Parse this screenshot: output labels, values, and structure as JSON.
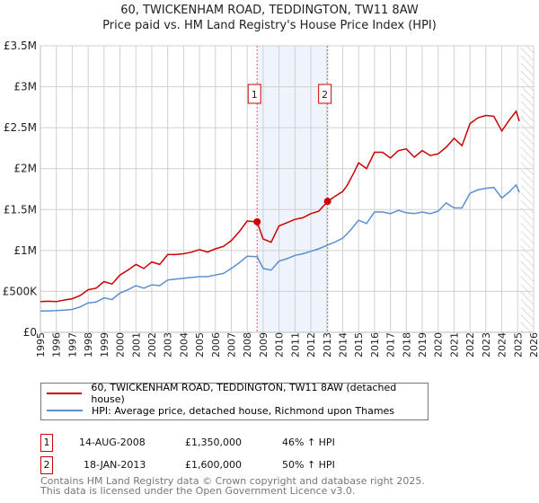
{
  "title": "60, TWICKENHAM ROAD, TEDDINGTON, TW11 8AW",
  "subtitle": "Price paid vs. HM Land Registry's House Price Index (HPI)",
  "chart_data": {
    "type": "line",
    "title": "60, TWICKENHAM ROAD, TEDDINGTON, TW11 8AW",
    "subtitle": "Price paid vs. HM Land Registry's House Price Index (HPI)",
    "xlim": [
      1995,
      2026
    ],
    "ylim": [
      0,
      3500000
    ],
    "x_ticks": [
      "1995",
      "1996",
      "1997",
      "1998",
      "1999",
      "2000",
      "2001",
      "2002",
      "2003",
      "2004",
      "2005",
      "2006",
      "2007",
      "2008",
      "2009",
      "2010",
      "2011",
      "2012",
      "2013",
      "2014",
      "2015",
      "2016",
      "2017",
      "2018",
      "2019",
      "2020",
      "2021",
      "2022",
      "2023",
      "2024",
      "2025",
      "2026"
    ],
    "y_ticks": [
      {
        "v": 0,
        "label": "£0"
      },
      {
        "v": 500000,
        "label": "£500K"
      },
      {
        "v": 1000000,
        "label": "£1M"
      },
      {
        "v": 1500000,
        "label": "£1.5M"
      },
      {
        "v": 2000000,
        "label": "£2M"
      },
      {
        "v": 2500000,
        "label": "£2.5M"
      },
      {
        "v": 3000000,
        "label": "£3M"
      },
      {
        "v": 3500000,
        "label": "£3.5M"
      }
    ],
    "grid": true,
    "shaded_period": [
      2008.62,
      2013.05
    ],
    "forecast_hatch_from": 2025.2,
    "series": [
      {
        "name": "60, TWICKENHAM ROAD, TEDDINGTON, TW11 8AW (detached house)",
        "color": "#cc0000",
        "x": [
          1995,
          1995.5,
          1996,
          1996.5,
          1997,
          1997.5,
          1998,
          1998.5,
          1999,
          1999.5,
          2000,
          2000.5,
          2001,
          2001.5,
          2002,
          2002.5,
          2003,
          2003.5,
          2004,
          2004.5,
          2005,
          2005.5,
          2006,
          2006.5,
          2007,
          2007.5,
          2008,
          2008.62,
          2009,
          2009.5,
          2010,
          2010.5,
          2011,
          2011.5,
          2012,
          2012.5,
          2013.05,
          2013.5,
          2014,
          2014.3,
          2014.7,
          2015,
          2015.5,
          2016,
          2016.5,
          2017,
          2017.5,
          2018,
          2018.5,
          2019,
          2019.5,
          2020,
          2020.5,
          2021,
          2021.5,
          2022,
          2022.5,
          2023,
          2023.5,
          2024,
          2024.5,
          2024.9,
          2025.1
        ],
        "values": [
          375000,
          380000,
          375000,
          395000,
          410000,
          450000,
          520000,
          540000,
          620000,
          590000,
          700000,
          760000,
          830000,
          780000,
          860000,
          830000,
          950000,
          950000,
          960000,
          980000,
          1010000,
          980000,
          1020000,
          1050000,
          1120000,
          1230000,
          1360000,
          1350000,
          1140000,
          1100000,
          1300000,
          1340000,
          1380000,
          1400000,
          1450000,
          1480000,
          1600000,
          1660000,
          1720000,
          1800000,
          1950000,
          2070000,
          2000000,
          2200000,
          2200000,
          2130000,
          2220000,
          2240000,
          2140000,
          2220000,
          2160000,
          2180000,
          2260000,
          2370000,
          2280000,
          2550000,
          2620000,
          2650000,
          2640000,
          2460000,
          2600000,
          2700000,
          2580000
        ]
      },
      {
        "name": "HPI: Average price, detached house, Richmond upon Thames",
        "color": "#5b8fd4",
        "x": [
          1995,
          1995.5,
          1996,
          1996.5,
          1997,
          1997.5,
          1998,
          1998.5,
          1999,
          1999.5,
          2000,
          2000.5,
          2001,
          2001.5,
          2002,
          2002.5,
          2003,
          2003.5,
          2004,
          2004.5,
          2005,
          2005.5,
          2006,
          2006.5,
          2007,
          2007.5,
          2008,
          2008.62,
          2009,
          2009.5,
          2010,
          2010.5,
          2011,
          2011.5,
          2012,
          2012.5,
          2013.05,
          2013.5,
          2014,
          2014.5,
          2015,
          2015.5,
          2016,
          2016.5,
          2017,
          2017.5,
          2018,
          2018.5,
          2019,
          2019.5,
          2020,
          2020.5,
          2021,
          2021.5,
          2022,
          2022.5,
          2023,
          2023.5,
          2024,
          2024.5,
          2024.9,
          2025.1
        ],
        "values": [
          260000,
          262000,
          265000,
          272000,
          280000,
          310000,
          360000,
          370000,
          420000,
          400000,
          480000,
          520000,
          570000,
          540000,
          580000,
          570000,
          640000,
          650000,
          660000,
          670000,
          680000,
          680000,
          700000,
          720000,
          780000,
          850000,
          930000,
          925000,
          780000,
          760000,
          870000,
          900000,
          940000,
          960000,
          990000,
          1020000,
          1066000,
          1100000,
          1150000,
          1250000,
          1370000,
          1330000,
          1470000,
          1470000,
          1450000,
          1490000,
          1460000,
          1450000,
          1470000,
          1450000,
          1480000,
          1580000,
          1520000,
          1520000,
          1700000,
          1740000,
          1760000,
          1770000,
          1640000,
          1720000,
          1800000,
          1710000
        ]
      }
    ],
    "sales": [
      {
        "id": "1",
        "x": 2008.62,
        "value": 1350000
      },
      {
        "id": "2",
        "x": 2013.05,
        "value": 1600000
      }
    ]
  },
  "legend": {
    "property": "60, TWICKENHAM ROAD, TEDDINGTON, TW11 8AW (detached house)",
    "hpi": "HPI: Average price, detached house, Richmond upon Thames"
  },
  "transactions": [
    {
      "id": "1",
      "date": "14-AUG-2008",
      "price": "£1,350,000",
      "hpi": "46% ↑ HPI"
    },
    {
      "id": "2",
      "date": "18-JAN-2013",
      "price": "£1,600,000",
      "hpi": "50% ↑ HPI"
    }
  ],
  "footer": {
    "line1": "Contains HM Land Registry data © Crown copyright and database right 2025.",
    "line2": "This data is licensed under the Open Government Licence v3.0."
  }
}
